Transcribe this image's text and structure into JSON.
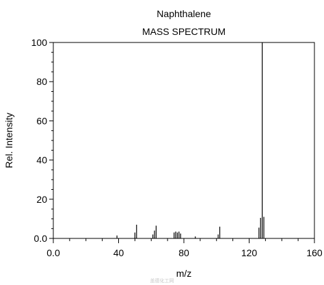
{
  "chart_data": {
    "type": "bar",
    "title": "Naphthalene",
    "subtitle": "MASS SPECTRUM",
    "xlabel": "m/z",
    "ylabel": "Rel. Intensity",
    "xlim": [
      0,
      160
    ],
    "ylim": [
      0,
      100
    ],
    "x_ticks": [
      "0.0",
      "40",
      "80",
      "120",
      "160"
    ],
    "y_ticks": [
      "0.0",
      "20",
      "40",
      "60",
      "80",
      "100"
    ],
    "x_tick_values": [
      0,
      40,
      80,
      120,
      160
    ],
    "y_tick_values": [
      0,
      20,
      40,
      60,
      80,
      100
    ],
    "grid": false,
    "bar_color": "#000000",
    "peaks": [
      {
        "mz": 39,
        "intensity": 1.5
      },
      {
        "mz": 50,
        "intensity": 3
      },
      {
        "mz": 51,
        "intensity": 7
      },
      {
        "mz": 61,
        "intensity": 2
      },
      {
        "mz": 62,
        "intensity": 4
      },
      {
        "mz": 63,
        "intensity": 6.5
      },
      {
        "mz": 74,
        "intensity": 3
      },
      {
        "mz": 75,
        "intensity": 3.5
      },
      {
        "mz": 76,
        "intensity": 3
      },
      {
        "mz": 77,
        "intensity": 3.5
      },
      {
        "mz": 78,
        "intensity": 2.5
      },
      {
        "mz": 87,
        "intensity": 1
      },
      {
        "mz": 101,
        "intensity": 2
      },
      {
        "mz": 102,
        "intensity": 6
      },
      {
        "mz": 126,
        "intensity": 5.5
      },
      {
        "mz": 127,
        "intensity": 10.5
      },
      {
        "mz": 128,
        "intensity": 100
      },
      {
        "mz": 129,
        "intensity": 11
      }
    ]
  },
  "watermark": "盖德化工网"
}
